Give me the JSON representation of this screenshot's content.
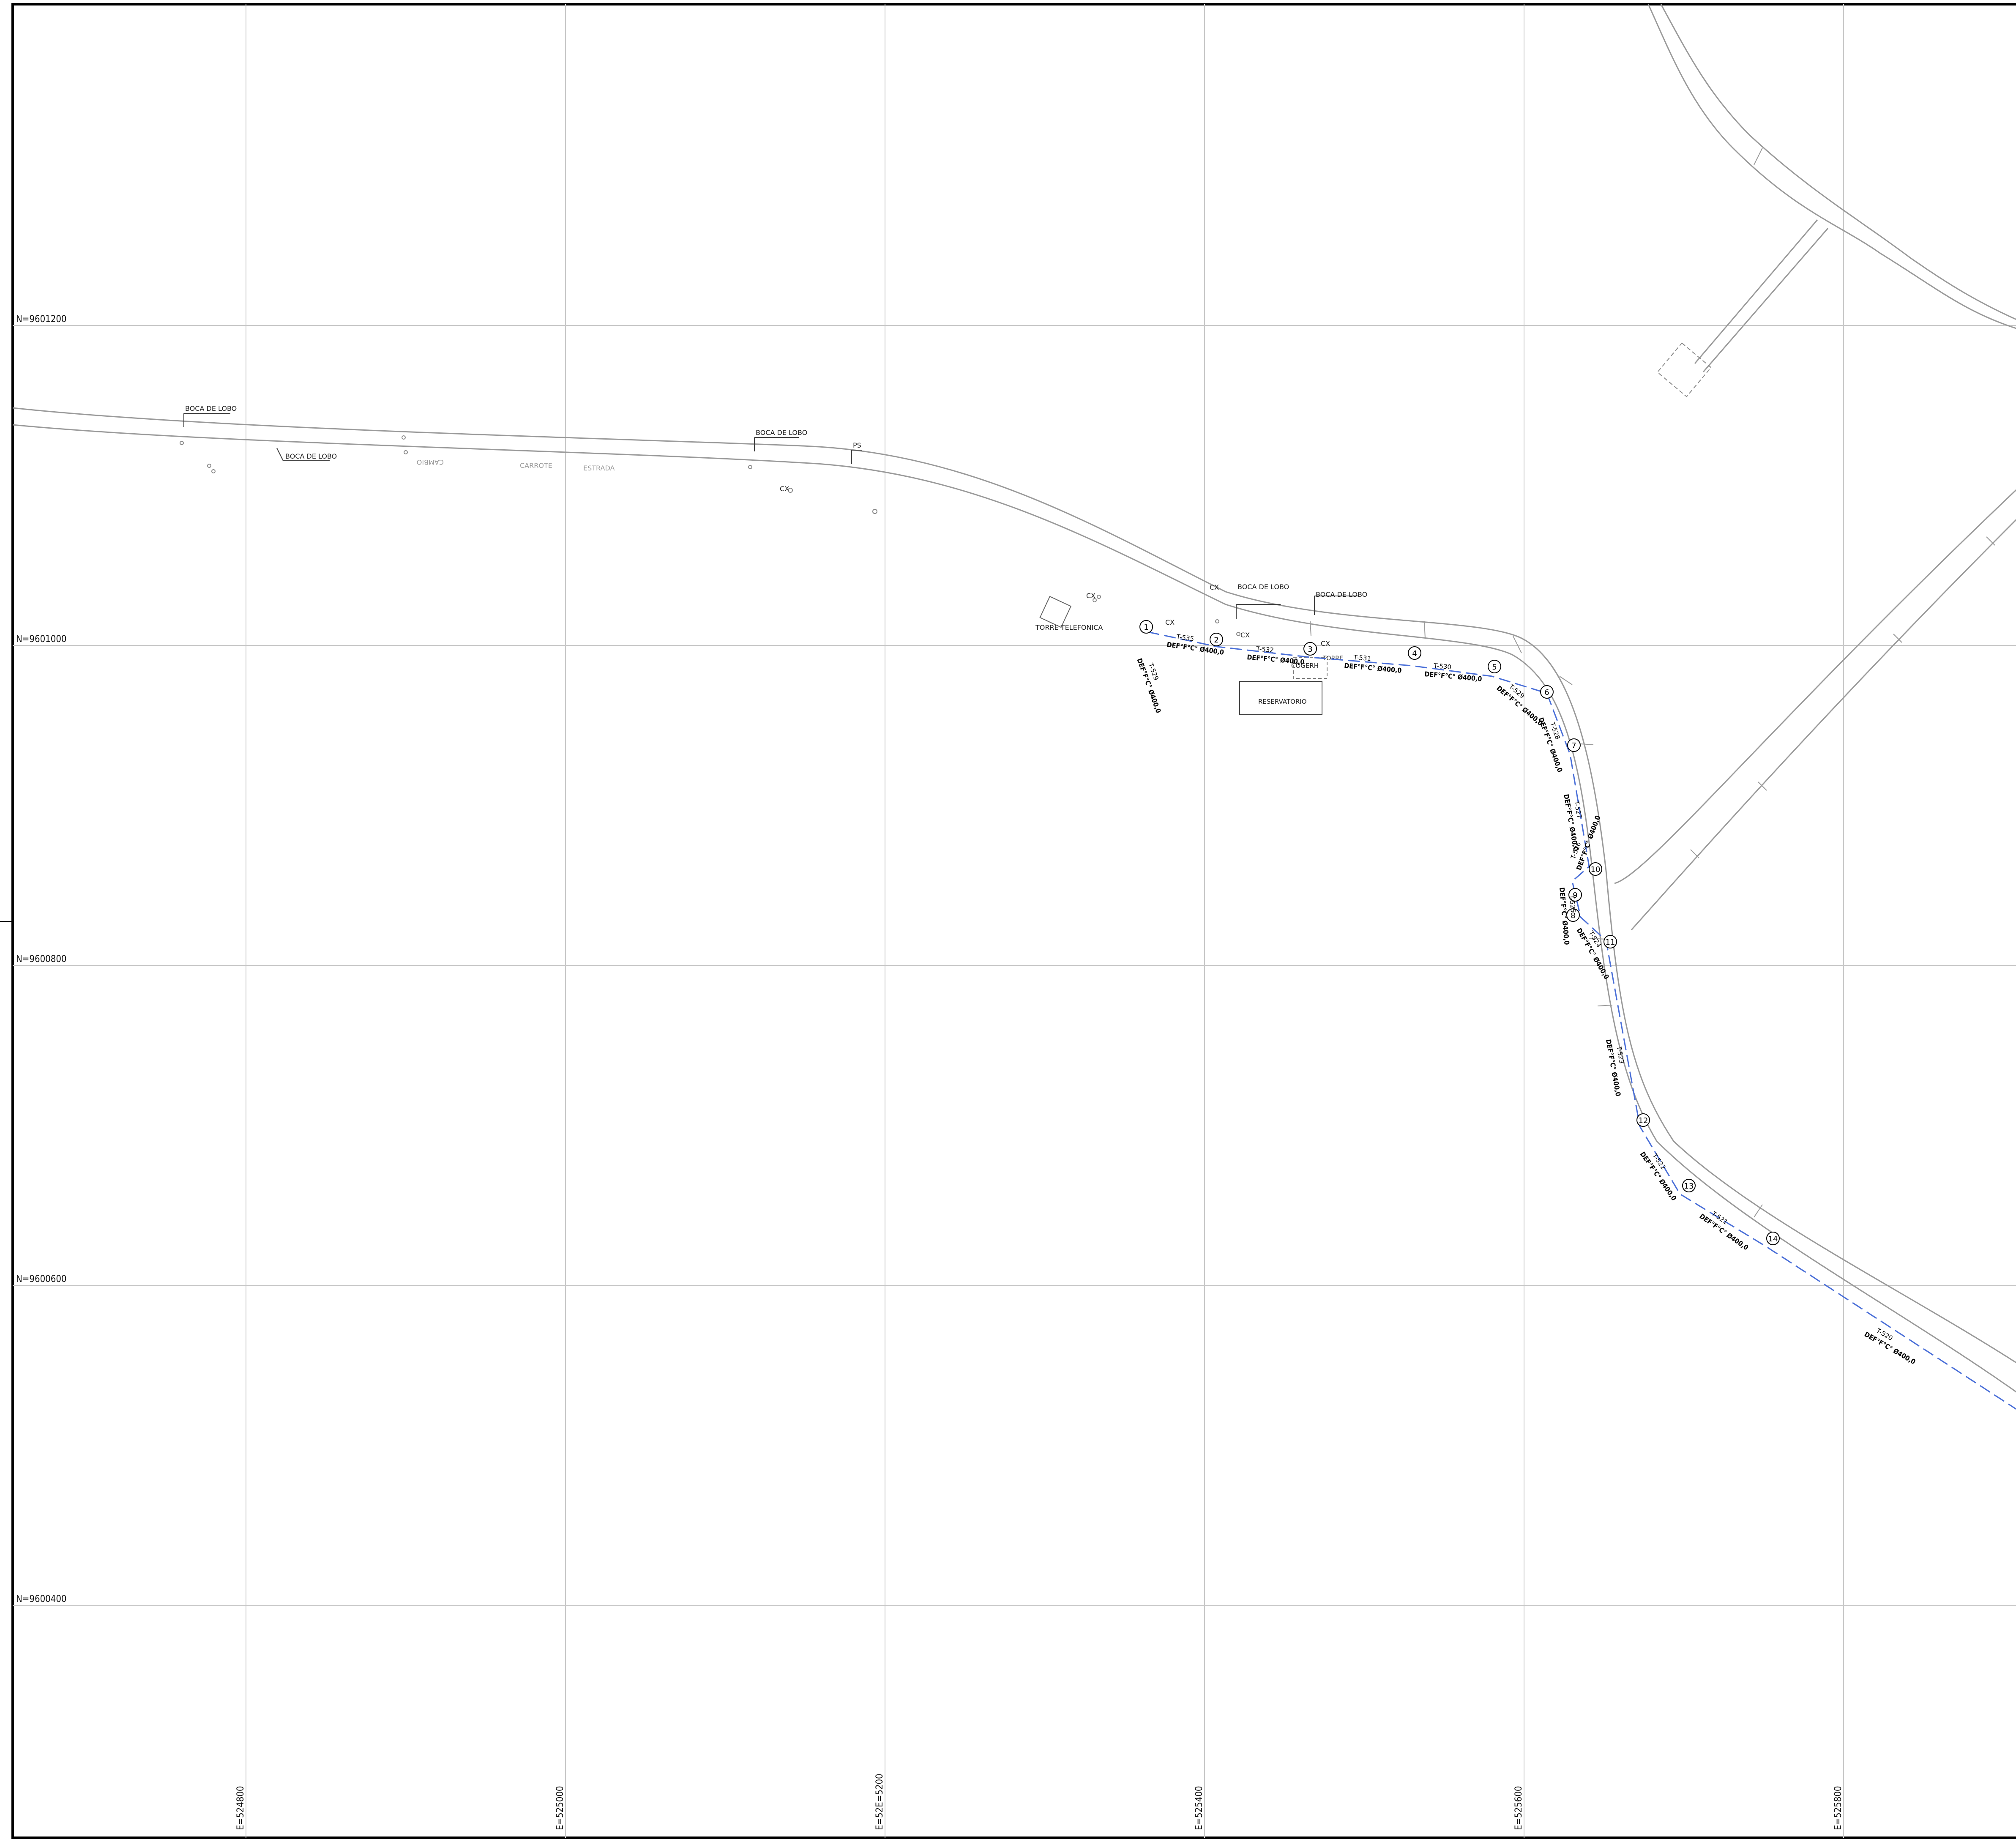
{
  "map": {
    "grid": {
      "northings": [
        {
          "label": "N=9601200"
        },
        {
          "label": "N=9601000"
        },
        {
          "label": "N=9600800"
        },
        {
          "label": "N=9600600"
        },
        {
          "label": "N=9600400"
        }
      ],
      "eastings": [
        {
          "label": "E=524800"
        },
        {
          "label": "E=525000"
        },
        {
          "label": "E=52E=5200"
        },
        {
          "label": "E=525400"
        },
        {
          "label": "E=525600"
        },
        {
          "label": "E=525800"
        }
      ]
    },
    "road_labels": [
      {
        "text": "CAMBIO"
      },
      {
        "text": "CARROTE"
      },
      {
        "text": "ESTRADA"
      }
    ],
    "features": [
      {
        "text": "BOCA DE LOBO"
      },
      {
        "text": "BOCA DE LOBO"
      },
      {
        "text": "BOCA DE LOBO"
      },
      {
        "text": "PS"
      },
      {
        "text": "CX"
      },
      {
        "text": "CX"
      },
      {
        "text": "CX"
      },
      {
        "text": "BOCA DE LOBO"
      },
      {
        "text": "BOCA DE LOBO"
      },
      {
        "text": "TORRE TELEFONICA"
      },
      {
        "text": "CX"
      },
      {
        "text": "CX"
      },
      {
        "text": "CX"
      },
      {
        "text": "COGERH"
      },
      {
        "text": "TORRE"
      },
      {
        "text": "RESERVATORIO"
      }
    ],
    "pipeline": {
      "color": "#4a6fd8",
      "nodes": [
        {
          "label": "1"
        },
        {
          "label": "2"
        },
        {
          "label": "3"
        },
        {
          "label": "4"
        },
        {
          "label": "5"
        },
        {
          "label": "6"
        },
        {
          "label": "7"
        },
        {
          "label": "8"
        },
        {
          "label": "9"
        },
        {
          "label": "10"
        },
        {
          "label": "11"
        },
        {
          "label": "12"
        },
        {
          "label": "13"
        },
        {
          "label": "14"
        }
      ],
      "segment_labels": [
        {
          "code": "T-529",
          "spec": "DEF°F°C° Ø400,0"
        },
        {
          "code": "T-535",
          "spec": "DEF°F°C° Ø400,0"
        },
        {
          "code": "T-532",
          "spec": "DEF°F°C° Ø400,0"
        },
        {
          "code": "T-531",
          "spec": "DEF°F°C° Ø400,0"
        },
        {
          "code": "T-530",
          "spec": "DEF°F°C° Ø400,0"
        },
        {
          "code": "T-529",
          "spec": "DEF°F°C° Ø400,0"
        },
        {
          "code": "T-528",
          "spec": "DEF°F°C° Ø400,0"
        },
        {
          "code": "T-527",
          "spec": "DEF°F°C° Ø400,0"
        },
        {
          "code": "T-526",
          "spec": "DEF°F°C° Ø400,0"
        },
        {
          "code": "T-525",
          "spec": "DEF°F°C° Ø400,0"
        },
        {
          "code": "T-524",
          "spec": "DEF°F°C° Ø400,0"
        },
        {
          "code": "T-523",
          "spec": "DEF°F°C° Ø400,0"
        },
        {
          "code": "T-522",
          "spec": "DEF°F°C° Ø400,0"
        },
        {
          "code": "T-521",
          "spec": "DEF°F°C° Ø400,0"
        },
        {
          "code": "T-520",
          "spec": "DEF°F°C° Ø400,0"
        }
      ]
    }
  }
}
